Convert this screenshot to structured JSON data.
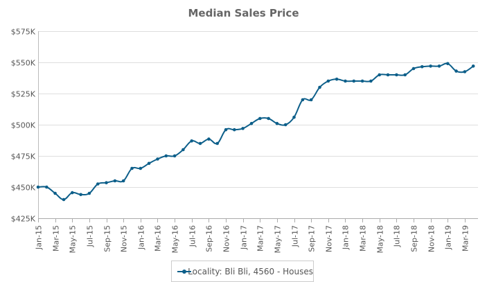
{
  "chart_data": {
    "type": "line",
    "title": "Median Sales Price",
    "xlabel": "",
    "ylabel": "",
    "ylim": [
      425000,
      575000
    ],
    "y_ticks": [
      {
        "value": 425000,
        "label": "$425K"
      },
      {
        "value": 450000,
        "label": "$450K"
      },
      {
        "value": 475000,
        "label": "$475K"
      },
      {
        "value": 500000,
        "label": "$500K"
      },
      {
        "value": 525000,
        "label": "$525K"
      },
      {
        "value": 550000,
        "label": "$550K"
      },
      {
        "value": 575000,
        "label": "$575K"
      }
    ],
    "x_tick_labels": [
      "Jan-15",
      "Mar-15",
      "May-15",
      "Jul-15",
      "Sep-15",
      "Nov-15",
      "Jan-16",
      "Mar-16",
      "May-16",
      "Jul-16",
      "Sep-16",
      "Nov-16",
      "Jan-17",
      "Mar-17",
      "May-17",
      "Jul-17",
      "Sep-17",
      "Nov-17",
      "Jan-18",
      "Mar-18",
      "May-18",
      "Jul-18",
      "Sep-18",
      "Nov-18",
      "Jan-19",
      "Mar-19"
    ],
    "x": [
      "Jan-15",
      "Feb-15",
      "Mar-15",
      "Apr-15",
      "May-15",
      "Jun-15",
      "Jul-15",
      "Aug-15",
      "Sep-15",
      "Oct-15",
      "Nov-15",
      "Dec-15",
      "Jan-16",
      "Feb-16",
      "Mar-16",
      "Apr-16",
      "May-16",
      "Jun-16",
      "Jul-16",
      "Aug-16",
      "Sep-16",
      "Oct-16",
      "Nov-16",
      "Dec-16",
      "Jan-17",
      "Feb-17",
      "Mar-17",
      "Apr-17",
      "May-17",
      "Jun-17",
      "Jul-17",
      "Aug-17",
      "Sep-17",
      "Oct-17",
      "Nov-17",
      "Dec-17",
      "Jan-18",
      "Feb-18",
      "Mar-18",
      "Apr-18",
      "May-18",
      "Jun-18",
      "Jul-18",
      "Aug-18",
      "Sep-18",
      "Oct-18",
      "Nov-18",
      "Dec-18",
      "Jan-19",
      "Feb-19",
      "Mar-19",
      "Apr-19"
    ],
    "series": [
      {
        "name": "Locality: Bli Bli, 4560 - Houses",
        "color": "#0d5f8a",
        "values": [
          450000,
          450000,
          445000,
          440000,
          445500,
          444000,
          445000,
          452500,
          453500,
          455000,
          455000,
          465000,
          465000,
          469000,
          472500,
          475000,
          475000,
          480000,
          487000,
          485000,
          488500,
          485000,
          496000,
          496000,
          497000,
          501000,
          505000,
          505000,
          501000,
          500000,
          506000,
          520000,
          520000,
          530000,
          535000,
          536500,
          535000,
          535000,
          535000,
          535000,
          540000,
          540000,
          540000,
          540000,
          545000,
          546500,
          547000,
          547000,
          549000,
          543000,
          542500,
          547000
        ]
      }
    ],
    "grid": {
      "horizontal": true,
      "vertical": false
    },
    "legend_position": "bottom-center"
  }
}
